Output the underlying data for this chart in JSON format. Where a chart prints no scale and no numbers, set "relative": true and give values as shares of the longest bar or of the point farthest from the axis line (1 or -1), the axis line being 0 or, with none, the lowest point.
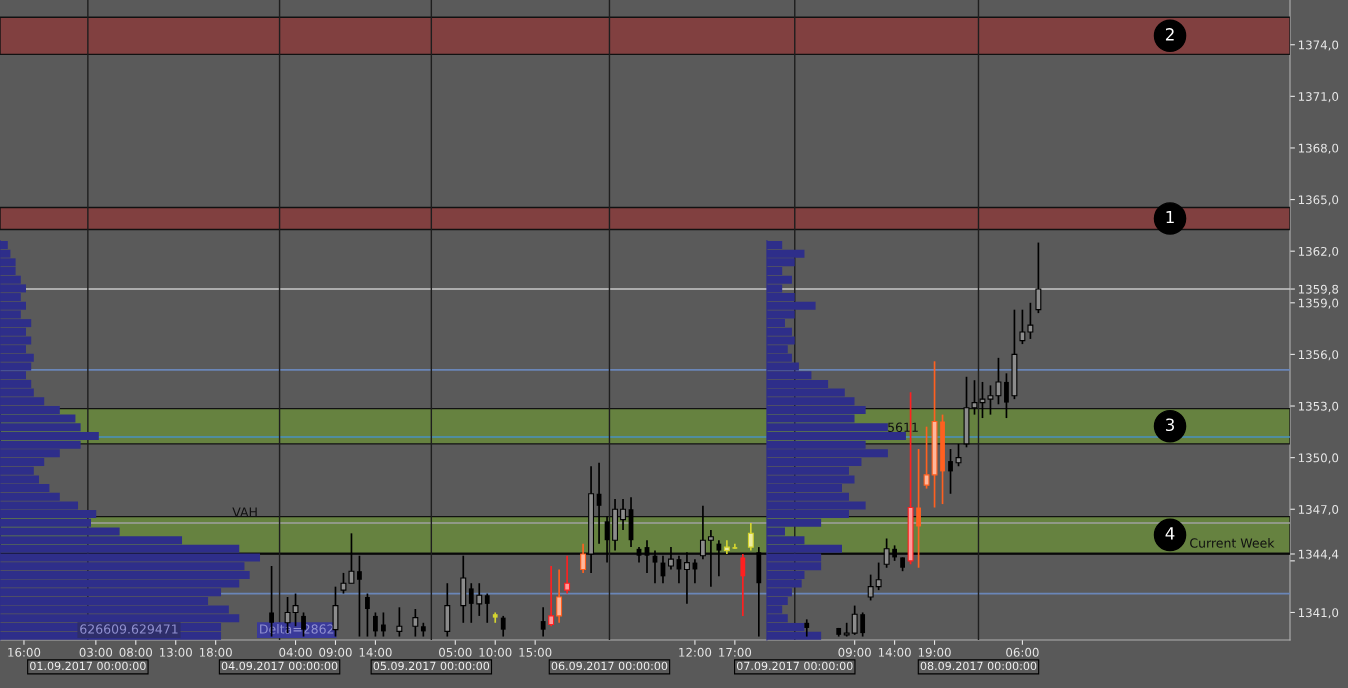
{
  "chart_data": [
    {
      "type": "candlestick",
      "categories": [
        "16:00",
        null,
        null,
        null,
        null,
        null,
        null,
        null,
        null,
        "03:00",
        null,
        null,
        null,
        null,
        "08:00",
        null,
        null,
        null,
        null,
        "13:00",
        null,
        null,
        null,
        null,
        "18:00",
        null,
        null,
        null,
        null,
        null,
        null,
        null,
        null,
        null,
        "04:00",
        null,
        null,
        null,
        null,
        "09:00",
        null,
        null,
        null,
        null,
        "14:00",
        null,
        null,
        null,
        null,
        null,
        null,
        null,
        null,
        null,
        "05:00",
        null,
        null,
        null,
        null,
        "10:00",
        null,
        null,
        null,
        null,
        "15:00",
        null,
        null,
        null,
        null,
        null,
        null,
        null,
        null,
        null,
        null,
        null,
        null,
        null,
        null,
        null,
        null,
        null,
        null,
        null,
        "12:00",
        null,
        null,
        null,
        null,
        "17:00",
        null,
        null,
        null,
        null,
        null,
        null,
        null,
        null,
        null,
        null,
        null,
        null,
        null,
        null,
        "09:00",
        null,
        null,
        null,
        null,
        "14:00",
        null,
        null,
        null,
        null,
        "19:00",
        null,
        null,
        null,
        null,
        null,
        null,
        null,
        null,
        null,
        null,
        "06:00",
        null,
        null,
        null,
        null,
        null,
        null,
        null,
        null,
        null,
        null,
        null,
        null,
        null,
        null,
        null,
        null,
        null,
        null,
        null,
        null,
        null,
        null,
        null,
        null,
        null,
        null,
        null,
        null,
        null,
        null,
        null,
        null,
        null
      ],
      "ohlc": [
        null,
        null,
        null,
        null,
        null,
        null,
        null,
        null,
        null,
        null,
        null,
        null,
        null,
        null,
        null,
        null,
        null,
        null,
        null,
        null,
        null,
        null,
        null,
        null,
        null,
        null,
        null,
        null,
        null,
        null,
        null,
        [
          1341.0,
          1343.7,
          1339.6,
          1340.4
        ],
        null,
        [
          1340.4,
          1341.9,
          1339.8,
          1341.0
        ],
        [
          1341.0,
          1342.1,
          1340.2,
          1341.4
        ],
        [
          1340.8,
          1341.0,
          1339.6,
          1340.0
        ],
        null,
        null,
        null,
        [
          1340.0,
          1342.5,
          1339.6,
          1341.4
        ],
        [
          1342.3,
          1343.3,
          1342.1,
          1342.7
        ],
        [
          1342.7,
          1345.6,
          1342.7,
          1343.4
        ],
        [
          1343.4,
          1344.3,
          1339.6,
          1342.9
        ],
        [
          1341.9,
          1342.1,
          1339.6,
          1341.2
        ],
        [
          1340.8,
          1341.0,
          1339.6,
          1339.9
        ],
        [
          1340.3,
          1341.0,
          1339.6,
          1339.9
        ],
        null,
        [
          1339.9,
          1341.3,
          1339.6,
          1340.2
        ],
        null,
        [
          1340.2,
          1341.2,
          1339.6,
          1340.7
        ],
        [
          1340.2,
          1340.4,
          1339.6,
          1339.9
        ],
        null,
        null,
        [
          1339.9,
          1342.7,
          1339.6,
          1341.4
        ],
        null,
        [
          1341.4,
          1344.3,
          1340.4,
          1343.0
        ],
        [
          1342.4,
          1342.7,
          1340.4,
          1341.5
        ],
        [
          1341.5,
          1342.7,
          1340.8,
          1342.0
        ],
        [
          1342.0,
          1342.1,
          1340.4,
          1341.5
        ],
        [
          1340.9,
          1341.0,
          1340.4,
          1340.7
        ],
        [
          1340.7,
          1340.8,
          1339.6,
          1340.0
        ],
        null,
        null,
        null,
        null,
        [
          1340.5,
          1341.3,
          1339.6,
          1340.0
        ],
        [
          1340.3,
          1343.7,
          1340.2,
          1340.8
        ],
        [
          1340.8,
          1343.5,
          1340.4,
          1341.9
        ],
        [
          1342.3,
          1344.3,
          1342.1,
          1342.7
        ],
        null,
        [
          1343.5,
          1345.0,
          1343.3,
          1344.4
        ],
        [
          1344.4,
          1349.5,
          1343.3,
          1347.9
        ],
        [
          1347.9,
          1349.7,
          1345.0,
          1347.2
        ],
        [
          1346.3,
          1346.6,
          1343.9,
          1345.2
        ],
        [
          1345.2,
          1347.6,
          1344.6,
          1347.0
        ],
        [
          1346.4,
          1347.6,
          1345.8,
          1347.0
        ],
        [
          1347.0,
          1347.7,
          1344.8,
          1345.2
        ],
        [
          1344.7,
          1344.8,
          1343.9,
          1344.3
        ],
        [
          1344.8,
          1345.2,
          1343.3,
          1344.3
        ],
        [
          1344.3,
          1344.6,
          1342.7,
          1343.9
        ],
        [
          1343.9,
          1344.3,
          1342.7,
          1343.1
        ],
        [
          1343.7,
          1344.8,
          1343.5,
          1344.1
        ],
        [
          1344.1,
          1344.3,
          1342.7,
          1343.5
        ],
        [
          1343.5,
          1344.5,
          1341.5,
          1343.9
        ],
        [
          1343.9,
          1344.1,
          1342.7,
          1343.5
        ],
        [
          1344.3,
          1347.2,
          1344.1,
          1345.2
        ],
        [
          1345.2,
          1345.8,
          1342.5,
          1345.4
        ],
        [
          1345.0,
          1345.2,
          1343.1,
          1344.6
        ],
        [
          1344.6,
          1345.2,
          1344.4,
          1344.8
        ],
        [
          1344.8,
          1345.0,
          1344.7,
          1344.7
        ],
        [
          1344.2,
          1344.4,
          1340.8,
          1343.1
        ],
        [
          1344.8,
          1346.2,
          1344.6,
          1345.6
        ],
        [
          1344.5,
          1344.8,
          1339.6,
          1342.7
        ],
        null,
        null,
        null,
        null,
        null,
        [
          1340.4,
          1340.6,
          1339.6,
          1340.1
        ],
        null,
        null,
        null,
        [
          1340.1,
          1340.1,
          1339.6,
          1339.7
        ],
        [
          1339.7,
          1340.4,
          1339.6,
          1339.8
        ],
        [
          1339.8,
          1341.4,
          1339.7,
          1340.9
        ],
        [
          1340.9,
          1341.0,
          1339.6,
          1339.8
        ],
        [
          1341.9,
          1343.2,
          1341.7,
          1342.5
        ],
        [
          1342.5,
          1343.9,
          1342.3,
          1342.9
        ],
        [
          1343.8,
          1345.3,
          1343.6,
          1344.7
        ],
        [
          1344.7,
          1344.9,
          1344.0,
          1344.2
        ],
        [
          1344.2,
          1344.2,
          1343.4,
          1343.6
        ],
        [
          1344.0,
          1353.8,
          1343.8,
          1347.1
        ],
        [
          1347.1,
          1350.5,
          1343.6,
          1346.0
        ],
        [
          1348.4,
          1351.8,
          1348.2,
          1349.0
        ],
        [
          1349.0,
          1355.6,
          1347.1,
          1352.1
        ],
        [
          1352.1,
          1352.5,
          1347.3,
          1349.2
        ],
        [
          1349.8,
          1350.5,
          1347.9,
          1349.2
        ],
        [
          1349.7,
          1350.8,
          1349.5,
          1350.0
        ],
        [
          1350.8,
          1354.7,
          1350.6,
          1352.9
        ],
        [
          1352.9,
          1354.5,
          1352.5,
          1353.2
        ],
        [
          1353.2,
          1354.4,
          1352.3,
          1353.4
        ],
        [
          1353.4,
          1354.2,
          1352.5,
          1353.6
        ],
        [
          1353.6,
          1355.8,
          1353.1,
          1354.4
        ],
        [
          1354.4,
          1354.9,
          1352.3,
          1353.2
        ],
        [
          1353.6,
          1358.6,
          1353.4,
          1356.0
        ],
        [
          1356.8,
          1358.6,
          1356.6,
          1357.3
        ],
        [
          1357.3,
          1359.0,
          1356.9,
          1357.7
        ],
        [
          1358.6,
          1362.5,
          1358.4,
          1359.8
        ],
        null,
        null,
        null,
        null,
        null,
        null,
        null,
        null,
        null,
        null,
        null,
        null,
        null,
        null,
        null,
        null,
        null,
        null,
        null,
        null,
        null,
        null,
        null,
        null,
        null,
        null,
        null,
        null,
        null,
        null,
        null
      ],
      "colors": [
        null,
        null,
        null,
        null,
        null,
        null,
        null,
        null,
        null,
        null,
        null,
        null,
        null,
        null,
        null,
        null,
        null,
        null,
        null,
        null,
        null,
        null,
        null,
        null,
        null,
        null,
        null,
        null,
        null,
        null,
        null,
        "#000000",
        null,
        "#000000",
        "#000000",
        "#000000",
        null,
        null,
        null,
        "#000000",
        "#000000",
        "#000000",
        "#000000",
        "#000000",
        "#000000",
        "#000000",
        null,
        "#000000",
        null,
        "#000000",
        "#000000",
        null,
        null,
        "#000000",
        null,
        "#000000",
        "#000000",
        "#000000",
        "#000000",
        "#d4d430",
        "#000000",
        null,
        null,
        null,
        null,
        "#000000",
        "#ff2020",
        "#ff6020",
        "#ff2020",
        null,
        "#ff6020",
        "#000000",
        "#000000",
        "#000000",
        "#000000",
        "#000000",
        "#000000",
        "#000000",
        "#000000",
        "#000000",
        "#000000",
        "#000000",
        "#000000",
        "#000000",
        "#000000",
        "#000000",
        "#000000",
        "#000000",
        "#d4d430",
        "#d4d430",
        "#ff2020",
        "#d4d430",
        "#000000",
        null,
        null,
        null,
        null,
        null,
        "#000000",
        null,
        null,
        null,
        "#000000",
        "#000000",
        "#000000",
        "#000000",
        "#000000",
        "#000000",
        "#000000",
        "#000000",
        "#000000",
        "#ff2020",
        "#ff6020",
        "#ff6020",
        "#ff6020",
        "#ff6020",
        "#000000",
        "#000000",
        "#000000",
        "#000000",
        "#000000",
        "#000000",
        "#000000",
        "#000000",
        "#000000",
        "#000000",
        "#000000",
        "#000000",
        null,
        null,
        null,
        null,
        null,
        null,
        null,
        null,
        null,
        null,
        null,
        null,
        null,
        null,
        null,
        null,
        null,
        null,
        null,
        null,
        null,
        null,
        null,
        null,
        null,
        null,
        null,
        null,
        null,
        null,
        null
      ],
      "ylim": [
        1339.4,
        1376.6
      ],
      "yticks": [
        {
          "value": 1341,
          "label": "1341,0"
        },
        {
          "value": 1344,
          "label": null
        },
        {
          "value": 1344.4,
          "label": "1344,4"
        },
        {
          "value": 1347,
          "label": "1347,0"
        },
        {
          "value": 1350,
          "label": "1350,0"
        },
        {
          "value": 1353,
          "label": "1353,0"
        },
        {
          "value": 1356,
          "label": "1356,0"
        },
        {
          "value": 1359,
          "label": "1359,0"
        },
        {
          "value": 1359.8,
          "label": "1359,8"
        },
        {
          "value": 1362,
          "label": "1362,0"
        },
        {
          "value": 1365,
          "label": "1365,0"
        },
        {
          "value": 1368,
          "label": "1368,0"
        },
        {
          "value": 1371,
          "label": "1371,0"
        },
        {
          "value": 1374,
          "label": "1374,0"
        }
      ],
      "bands": [
        {
          "axis": "y",
          "from": 1363.26,
          "to": 1364.54,
          "label": "1",
          "color": "#8b3a3a"
        },
        {
          "axis": "y",
          "from": 1373.44,
          "to": 1375.6,
          "label": "2",
          "color": "#8b3a3a"
        },
        {
          "axis": "y",
          "from": 1350.8,
          "to": 1352.85,
          "label": "3",
          "color": "#6a8c3a"
        },
        {
          "axis": "y",
          "from": 1344.45,
          "to": 1346.57,
          "label": "4",
          "color": "#6a8c3a"
        }
      ],
      "ref_lines": [
        {
          "axis": "y",
          "value": 1344.4,
          "label": "Current Week",
          "color": "#000000"
        },
        {
          "axis": "y",
          "value": 1346.2,
          "label": "VAH",
          "color": "#a0a0a0"
        },
        {
          "axis": "y",
          "value": 1351.2,
          "color": "#4a90c0"
        },
        {
          "axis": "y",
          "value": 1359.8,
          "color": "#c8c8c8"
        },
        {
          "axis": "y",
          "value": 1355.1,
          "color": "#6a86b8"
        },
        {
          "axis": "y",
          "value": 1342.1,
          "color": "#6a86b8"
        }
      ],
      "annotations": [
        {
          "text": "5611",
          "y": 1351.2
        },
        "01.09.2017 00:00:00",
        "04.09.2017 00:00:00",
        "05.09.2017 00:00:00",
        "06.09.2017 00:00:00",
        "07.09.2017 00:00:00",
        "08.09.2017 00:00:00",
        "626609.629471",
        "Delta=2862"
      ]
    },
    {
      "type": "bar",
      "orientation": "horizontal",
      "relative": true,
      "color": "#2e2e8a",
      "categories": [
        null,
        null,
        null,
        null,
        null,
        null,
        null,
        null,
        null,
        null,
        null,
        null,
        null,
        null,
        null,
        null,
        null,
        null,
        null,
        null,
        null,
        null,
        null,
        null,
        null,
        null,
        null,
        null,
        null,
        null,
        null,
        null,
        null,
        null,
        null,
        null,
        null,
        null,
        null,
        null,
        null,
        null,
        null,
        null,
        null,
        null
      ],
      "values": [
        0.03,
        0.04,
        0.06,
        0.06,
        0.08,
        0.1,
        0.08,
        0.1,
        0.08,
        0.12,
        0.1,
        0.12,
        0.1,
        0.13,
        0.12,
        0.1,
        0.12,
        0.13,
        0.17,
        0.23,
        0.29,
        0.31,
        0.38,
        0.31,
        0.23,
        0.17,
        0.13,
        0.15,
        0.19,
        0.23,
        0.3,
        0.37,
        0.35,
        0.46,
        0.7,
        0.92,
        1,
        0.94,
        0.96,
        0.92,
        0.85,
        0.8,
        0.88,
        0.92,
        0.85,
        0.85
      ]
    },
    {
      "type": "bar",
      "orientation": "horizontal",
      "relative": true,
      "color": "#2e2e8a",
      "categories": [
        null,
        null,
        null,
        null,
        null,
        null,
        null,
        null,
        null,
        null,
        null,
        null,
        null,
        null,
        null,
        null,
        null,
        null,
        null,
        null,
        null,
        null,
        null,
        null,
        null,
        null,
        null,
        null,
        null,
        null,
        null,
        null,
        null,
        null,
        null,
        null,
        null,
        null,
        null,
        null,
        null,
        null,
        null,
        null,
        null,
        null
      ],
      "values": [
        0.11,
        0.27,
        0.2,
        0.11,
        0.18,
        0.11,
        0.2,
        0.35,
        0.2,
        0.13,
        0.18,
        0.2,
        0.15,
        0.18,
        0.23,
        0.32,
        0.44,
        0.56,
        0.63,
        0.71,
        0.63,
        0.87,
        1,
        0.71,
        0.87,
        0.68,
        0.59,
        0.63,
        0.54,
        0.59,
        0.71,
        0.59,
        0.39,
        0.13,
        0.27,
        0.54,
        0.39,
        0.39,
        0.27,
        0.25,
        0.18,
        0.15,
        0.11,
        0.15,
        0.27,
        0.39
      ]
    }
  ]
}
